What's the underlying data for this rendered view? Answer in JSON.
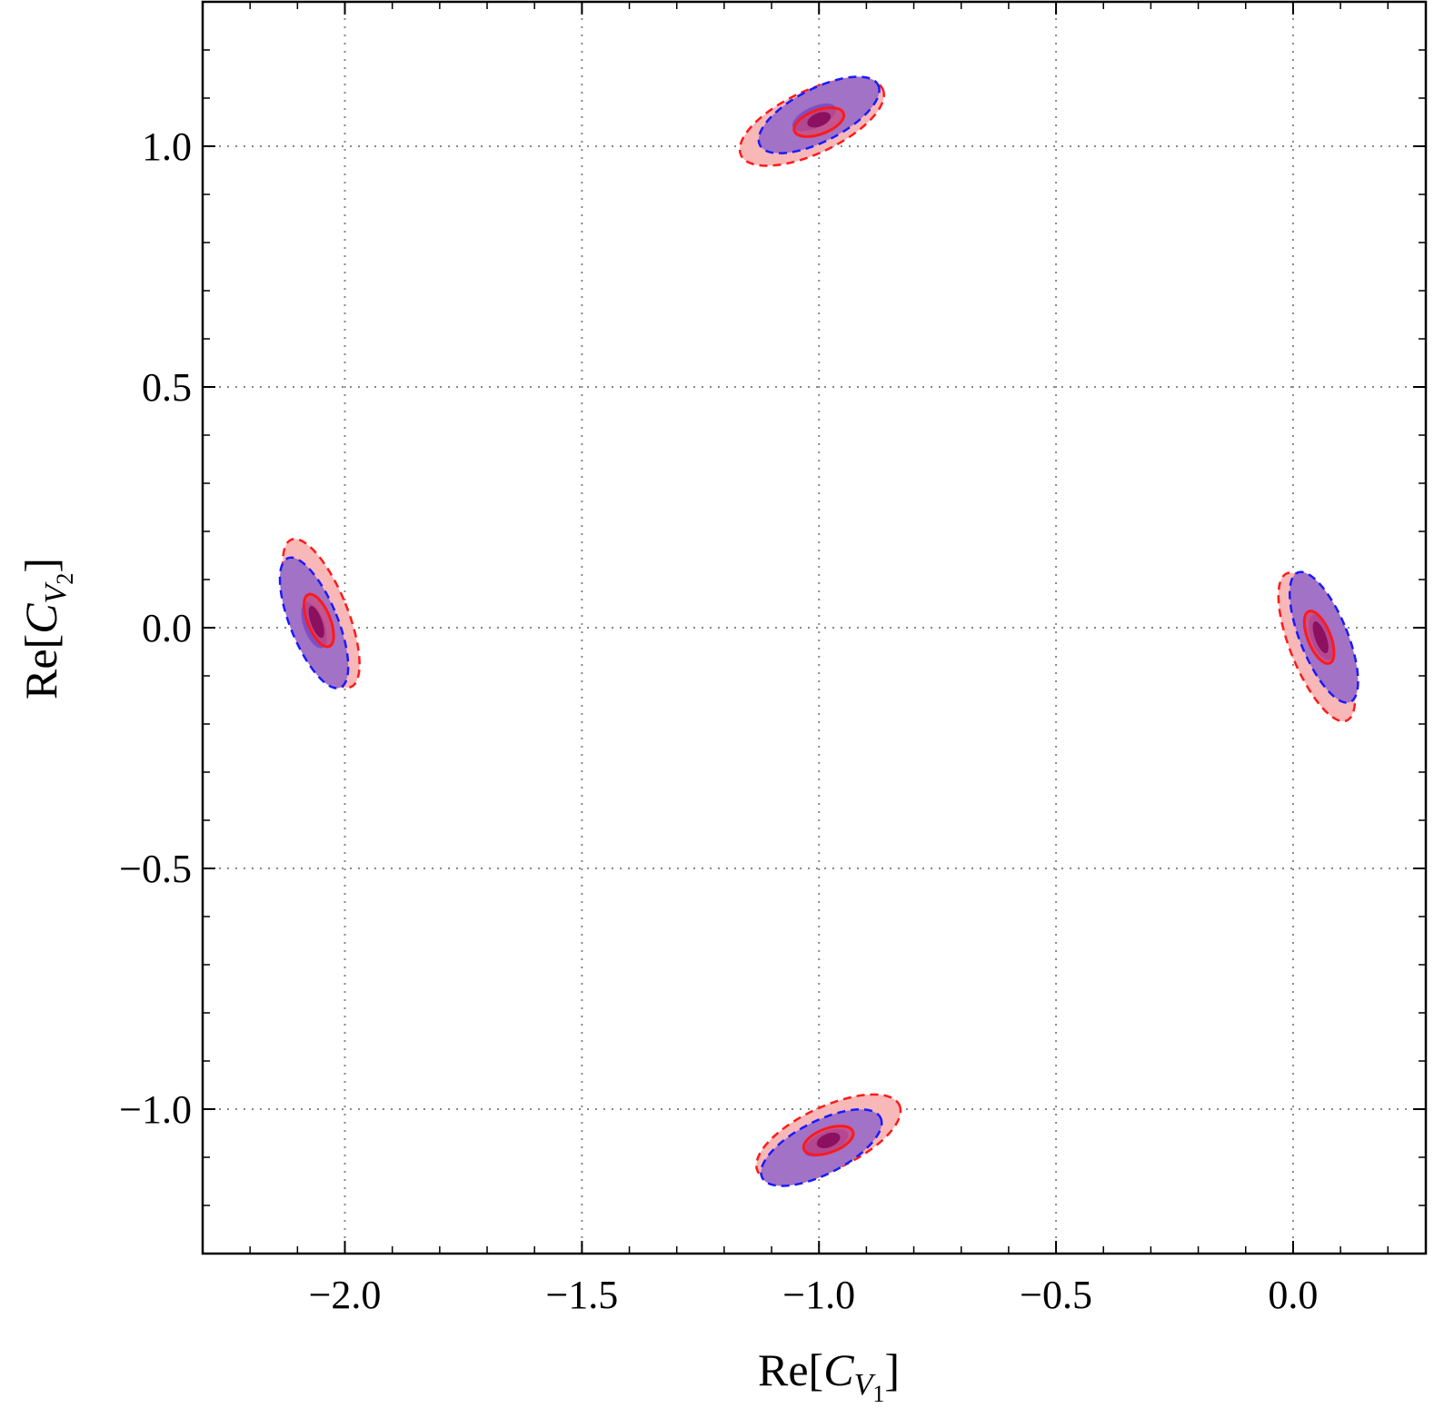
{
  "chart_data": {
    "type": "contour",
    "xlabel": {
      "prefix": "Re[",
      "symbol": "C",
      "sub": "V",
      "subsub": "1",
      "suffix": "]"
    },
    "ylabel": {
      "prefix": "Re[",
      "symbol": "C",
      "sub": "V",
      "subsub": "2",
      "suffix": "]"
    },
    "xlim": [
      -2.3,
      0.28
    ],
    "ylim": [
      -1.3,
      1.3
    ],
    "x_ticks": [
      {
        "value": -2.0,
        "label": "−2.0"
      },
      {
        "value": -1.5,
        "label": "−1.5"
      },
      {
        "value": -1.0,
        "label": "−1.0"
      },
      {
        "value": -0.5,
        "label": "−0.5"
      },
      {
        "value": 0.0,
        "label": "0.0"
      }
    ],
    "y_ticks": [
      {
        "value": 1.0,
        "label": "1.0"
      },
      {
        "value": 0.5,
        "label": "0.5"
      },
      {
        "value": 0.0,
        "label": "0.0"
      },
      {
        "value": -0.5,
        "label": "−0.5"
      },
      {
        "value": -1.0,
        "label": "−1.0"
      }
    ],
    "grid": true,
    "colors": {
      "red_outer_fill": "#f9b8b8",
      "red_line": "#ff1a1a",
      "blue_line": "#1a1aff",
      "blue_outer_fill": "#a272c6",
      "blue_inner_fill": "#7d4fc7",
      "red_inner_fill": "#d8436e",
      "core_fill": "#8b1060"
    },
    "series": [
      {
        "name": "red",
        "style": "outer dashed + inner solid contours",
        "line": "red"
      },
      {
        "name": "blue",
        "style": "outer dashed + inner filled contours",
        "line": "blue"
      }
    ],
    "regions": [
      {
        "center": [
          -1.0,
          1.04
        ],
        "red_outer": {
          "cx": -1.015,
          "cy": 1.05,
          "rx": 0.165,
          "ry": 0.065,
          "angle": 25
        },
        "blue_outer": {
          "cx": -1.0,
          "cy": 1.065,
          "rx": 0.14,
          "ry": 0.055,
          "angle": 27
        },
        "blue_inner": {
          "cx": -1.01,
          "cy": 1.06,
          "rx": 0.05,
          "ry": 0.022,
          "angle": 25
        },
        "red_inner": {
          "cx": -1.0,
          "cy": 1.05,
          "rx": 0.055,
          "ry": 0.025,
          "angle": 20
        },
        "core": {
          "cx": -1.0,
          "cy": 1.055,
          "rx": 0.026,
          "ry": 0.014,
          "angle": 22
        }
      },
      {
        "center": [
          -2.06,
          0.0
        ],
        "red_outer": {
          "cx": -2.05,
          "cy": 0.03,
          "rx": 0.055,
          "ry": 0.165,
          "angle": 22
        },
        "blue_outer": {
          "cx": -2.065,
          "cy": 0.01,
          "rx": 0.05,
          "ry": 0.145,
          "angle": 22
        },
        "blue_inner": {
          "cx": -2.065,
          "cy": 0.005,
          "rx": 0.022,
          "ry": 0.05,
          "angle": 20
        },
        "red_inner": {
          "cx": -2.055,
          "cy": 0.015,
          "rx": 0.024,
          "ry": 0.058,
          "angle": 22
        },
        "core": {
          "cx": -2.06,
          "cy": 0.012,
          "rx": 0.012,
          "ry": 0.035,
          "angle": 20
        }
      },
      {
        "center": [
          0.06,
          -0.04
        ],
        "red_outer": {
          "cx": 0.05,
          "cy": -0.04,
          "rx": 0.055,
          "ry": 0.165,
          "angle": 22
        },
        "blue_outer": {
          "cx": 0.065,
          "cy": -0.02,
          "rx": 0.05,
          "ry": 0.145,
          "angle": 22
        },
        "blue_inner": {
          "cx": 0.06,
          "cy": -0.02,
          "rx": 0.022,
          "ry": 0.05,
          "angle": 20
        },
        "red_inner": {
          "cx": 0.055,
          "cy": -0.02,
          "rx": 0.024,
          "ry": 0.058,
          "angle": 22
        },
        "core": {
          "cx": 0.058,
          "cy": -0.02,
          "rx": 0.012,
          "ry": 0.035,
          "angle": 20
        }
      },
      {
        "center": [
          -0.98,
          -1.07
        ],
        "red_outer": {
          "cx": -0.98,
          "cy": -1.06,
          "rx": 0.165,
          "ry": 0.065,
          "angle": 25
        },
        "blue_outer": {
          "cx": -0.995,
          "cy": -1.08,
          "rx": 0.14,
          "ry": 0.055,
          "angle": 27
        },
        "blue_inner": {
          "cx": -0.985,
          "cy": -1.07,
          "rx": 0.05,
          "ry": 0.022,
          "angle": 25
        },
        "red_inner": {
          "cx": -0.98,
          "cy": -1.065,
          "rx": 0.055,
          "ry": 0.025,
          "angle": 20
        },
        "core": {
          "cx": -0.98,
          "cy": -1.065,
          "rx": 0.026,
          "ry": 0.014,
          "angle": 22
        }
      }
    ]
  }
}
